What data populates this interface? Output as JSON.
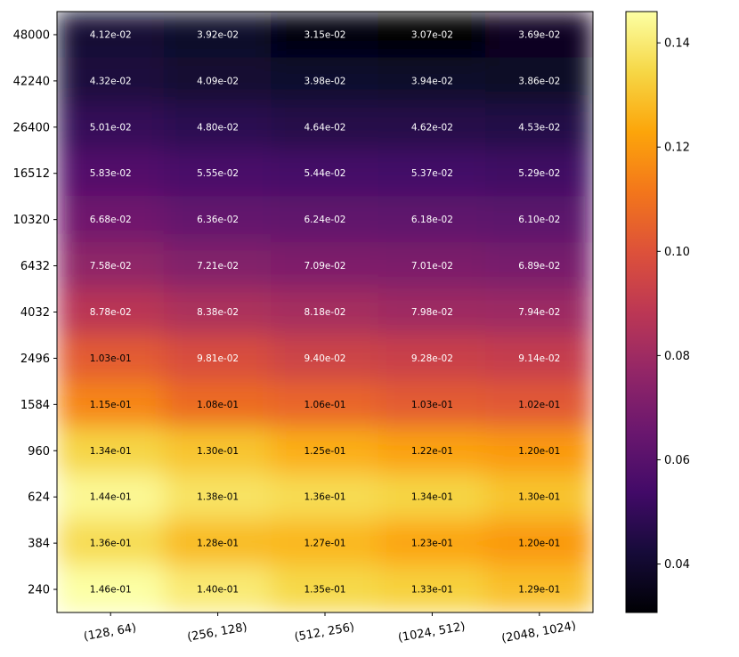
{
  "chart_data": {
    "type": "heatmap",
    "title": "",
    "xlabel": "",
    "ylabel": "",
    "x_categories": [
      "(128, 64)",
      "(256, 128)",
      "(512, 256)",
      "(1024, 512)",
      "(2048, 1024)"
    ],
    "y_categories": [
      "48000",
      "42240",
      "26400",
      "16512",
      "10320",
      "6432",
      "4032",
      "2496",
      "1584",
      "960",
      "624",
      "384",
      "240"
    ],
    "values": [
      [
        0.0412,
        0.0392,
        0.0315,
        0.0307,
        0.0369
      ],
      [
        0.0432,
        0.0409,
        0.0398,
        0.0394,
        0.0386
      ],
      [
        0.0501,
        0.048,
        0.0464,
        0.0462,
        0.0453
      ],
      [
        0.0583,
        0.0555,
        0.0544,
        0.0537,
        0.0529
      ],
      [
        0.0668,
        0.0636,
        0.0624,
        0.0618,
        0.061
      ],
      [
        0.0758,
        0.0721,
        0.0709,
        0.0701,
        0.0689
      ],
      [
        0.0878,
        0.0838,
        0.0818,
        0.0798,
        0.0794
      ],
      [
        0.103,
        0.0981,
        0.094,
        0.0928,
        0.0914
      ],
      [
        0.115,
        0.108,
        0.106,
        0.103,
        0.102
      ],
      [
        0.134,
        0.13,
        0.125,
        0.122,
        0.12
      ],
      [
        0.144,
        0.138,
        0.136,
        0.134,
        0.13
      ],
      [
        0.136,
        0.128,
        0.127,
        0.123,
        0.12
      ],
      [
        0.146,
        0.14,
        0.135,
        0.133,
        0.129
      ]
    ],
    "cell_labels": [
      [
        "4.12e-02",
        "3.92e-02",
        "3.15e-02",
        "3.07e-02",
        "3.69e-02"
      ],
      [
        "4.32e-02",
        "4.09e-02",
        "3.98e-02",
        "3.94e-02",
        "3.86e-02"
      ],
      [
        "5.01e-02",
        "4.80e-02",
        "4.64e-02",
        "4.62e-02",
        "4.53e-02"
      ],
      [
        "5.83e-02",
        "5.55e-02",
        "5.44e-02",
        "5.37e-02",
        "5.29e-02"
      ],
      [
        "6.68e-02",
        "6.36e-02",
        "6.24e-02",
        "6.18e-02",
        "6.10e-02"
      ],
      [
        "7.58e-02",
        "7.21e-02",
        "7.09e-02",
        "7.01e-02",
        "6.89e-02"
      ],
      [
        "8.78e-02",
        "8.38e-02",
        "8.18e-02",
        "7.98e-02",
        "7.94e-02"
      ],
      [
        "1.03e-01",
        "9.81e-02",
        "9.40e-02",
        "9.28e-02",
        "9.14e-02"
      ],
      [
        "1.15e-01",
        "1.08e-01",
        "1.06e-01",
        "1.03e-01",
        "1.02e-01"
      ],
      [
        "1.34e-01",
        "1.30e-01",
        "1.25e-01",
        "1.22e-01",
        "1.20e-01"
      ],
      [
        "1.44e-01",
        "1.38e-01",
        "1.36e-01",
        "1.34e-01",
        "1.30e-01"
      ],
      [
        "1.36e-01",
        "1.28e-01",
        "1.27e-01",
        "1.23e-01",
        "1.20e-01"
      ],
      [
        "1.46e-01",
        "1.40e-01",
        "1.35e-01",
        "1.33e-01",
        "1.29e-01"
      ]
    ],
    "colormap": "inferno",
    "colorbar": {
      "vmin": 0.0307,
      "vmax": 0.146,
      "ticks": [
        0.04,
        0.06,
        0.08,
        0.1,
        0.12,
        0.14
      ],
      "tick_labels": [
        "0.04",
        "0.06",
        "0.08",
        "0.10",
        "0.12",
        "0.14"
      ]
    },
    "interpolation": "smooth",
    "x_tick_rotation_deg": 10
  }
}
